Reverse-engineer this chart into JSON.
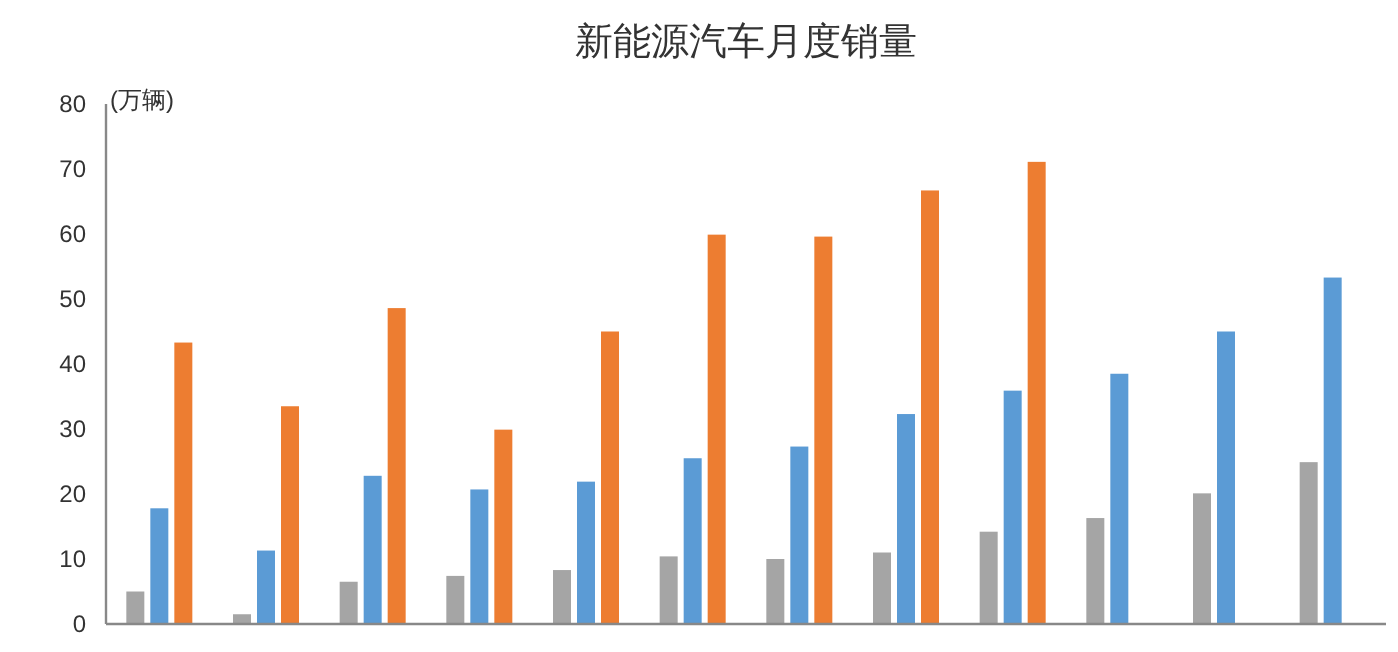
{
  "chart_data": {
    "type": "bar",
    "title": "新能源汽车月度销量",
    "ylabel": "(万辆)",
    "categories": [
      null,
      null,
      null,
      null,
      null,
      null,
      null,
      null,
      null,
      null,
      null,
      null
    ],
    "series": [
      {
        "color": "#a5a5a5",
        "values": [
          5.0,
          1.5,
          6.5,
          7.4,
          8.3,
          10.4,
          10.0,
          11.0,
          14.2,
          16.3,
          20.1,
          24.9
        ]
      },
      {
        "color": "#5b9bd5",
        "values": [
          17.8,
          11.3,
          22.8,
          20.7,
          21.9,
          25.5,
          27.3,
          32.3,
          35.9,
          38.5,
          45.0,
          53.3
        ]
      },
      {
        "color": "#ed7d31",
        "values": [
          43.3,
          33.5,
          48.6,
          29.9,
          45.0,
          59.9,
          59.6,
          66.7,
          71.1,
          null,
          null,
          null
        ]
      }
    ],
    "ylim": [
      0,
      80
    ],
    "yticks": [
      0,
      10,
      20,
      30,
      40,
      50,
      60,
      70,
      80
    ]
  }
}
